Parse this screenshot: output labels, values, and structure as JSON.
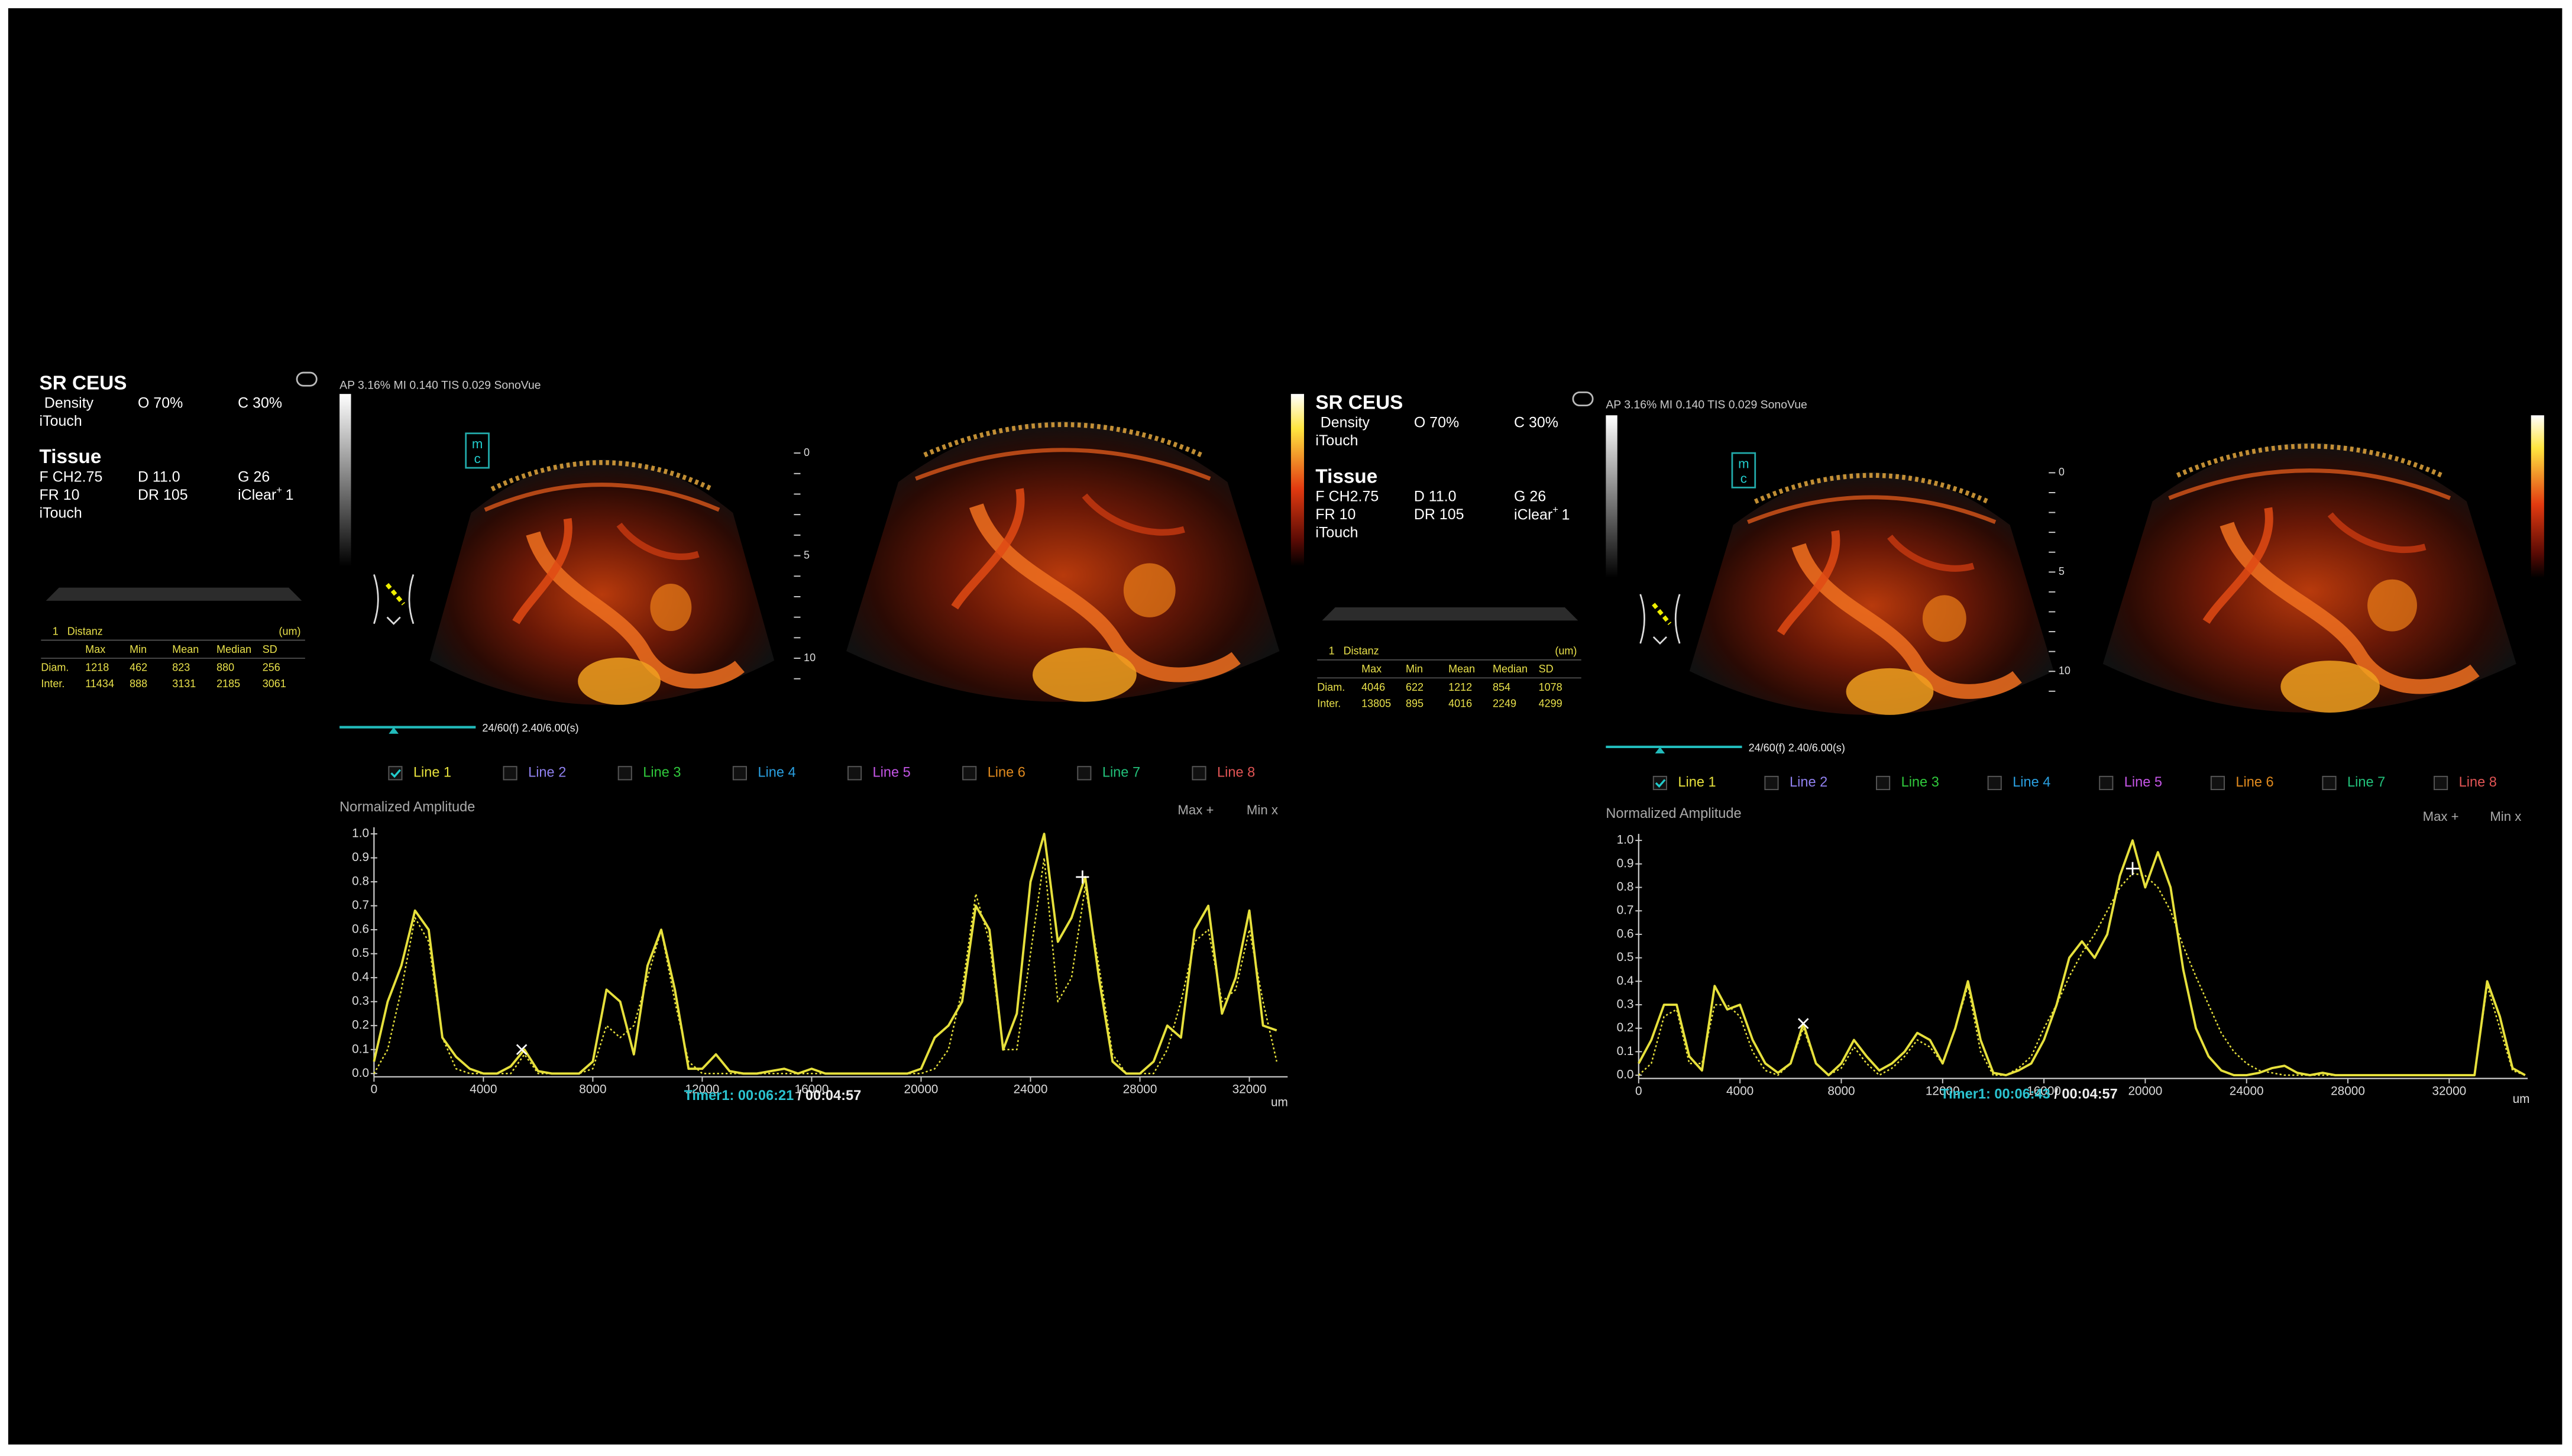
{
  "panels": [
    {
      "mode": "SR CEUS",
      "density": "Density",
      "overall": "O 70%",
      "contrast": "C 30%",
      "itouch": "iTouch",
      "tissue": "Tissue",
      "freq": "F CH2.75",
      "depth": "D 11.0",
      "gain": "G 26",
      "frame_rate": "FR 10",
      "dynamic_range": "DR 105",
      "iclear": "iClear",
      "iclear_sup": "+",
      "iclear_level": "1",
      "itouch2": "iTouch",
      "measure": {
        "index": "1",
        "name": "Distanz",
        "unit": "(um)",
        "columns": [
          "Max",
          "Min",
          "Mean",
          "Median",
          "SD"
        ],
        "rows": [
          {
            "label": "Diam.",
            "values": [
              1218,
              462,
              823,
              880,
              256
            ]
          },
          {
            "label": "Inter.",
            "values": [
              11434,
              888,
              3131,
              2185,
              3061
            ]
          }
        ]
      },
      "status": "AP 3.16%  MI 0.140  TIS 0.029  SonoVue",
      "logo": [
        "m",
        "c"
      ],
      "depth_labels": [
        "0",
        "5",
        "10"
      ],
      "frame": "24/60(f)  2.40/6.00(s)",
      "timer": "Timer1: 00:06:21",
      "timer_total": " / 00:04:57"
    },
    {
      "mode": "SR CEUS",
      "density": "Density",
      "overall": "O 70%",
      "contrast": "C 30%",
      "itouch": "iTouch",
      "tissue": "Tissue",
      "freq": "F CH2.75",
      "depth": "D 11.0",
      "gain": "G 26",
      "frame_rate": "FR 10",
      "dynamic_range": "DR 105",
      "iclear": "iClear",
      "iclear_sup": "+",
      "iclear_level": "1",
      "itouch2": "iTouch",
      "measure": {
        "index": "1",
        "name": "Distanz",
        "unit": "(um)",
        "columns": [
          "Max",
          "Min",
          "Mean",
          "Median",
          "SD"
        ],
        "rows": [
          {
            "label": "Diam.",
            "values": [
              4046,
              622,
              1212,
              854,
              1078
            ]
          },
          {
            "label": "Inter.",
            "values": [
              13805,
              895,
              4016,
              2249,
              4299
            ]
          }
        ]
      },
      "status": "AP 3.16%  MI 0.140  TIS 0.029  SonoVue",
      "logo": [
        "m",
        "c"
      ],
      "depth_labels": [
        "0",
        "5",
        "10"
      ],
      "frame": "24/60(f)  2.40/6.00(s)",
      "timer": "Timer1: 00:06:43",
      "timer_total": " / 00:04:57"
    }
  ],
  "chart_data": [
    {
      "type": "line",
      "title": "Normalized Amplitude",
      "x_unit": "um",
      "lines": [
        {
          "label": "Line 1",
          "color": "#e6e03c",
          "checked": true
        },
        {
          "label": "Line 2",
          "color": "#8f80ee",
          "checked": false
        },
        {
          "label": "Line 3",
          "color": "#30c83c",
          "checked": false
        },
        {
          "label": "Line 4",
          "color": "#2a9fe0",
          "checked": false
        },
        {
          "label": "Line 5",
          "color": "#c455e6",
          "checked": false
        },
        {
          "label": "Line 6",
          "color": "#e08a1e",
          "checked": false
        },
        {
          "label": "Line 7",
          "color": "#22c07a",
          "checked": false
        },
        {
          "label": "Line 8",
          "color": "#e05454",
          "checked": false
        }
      ],
      "max_label": "Max +",
      "min_label": "Min x",
      "xlim": [
        0,
        33400
      ],
      "xticks": [
        0,
        4000,
        8000,
        12000,
        16000,
        20000,
        24000,
        28000,
        32000
      ],
      "ylim": [
        0,
        1
      ],
      "yticks": [
        {
          "value": 0,
          "label": "0.0"
        },
        0.1,
        0.2,
        0.3,
        0.4,
        0.5,
        0.6,
        0.7,
        0.8,
        0.9,
        {
          "value": 1,
          "label": "1.0"
        }
      ],
      "x": [
        0,
        500,
        1000,
        1500,
        2000,
        2500,
        3000,
        3500,
        4000,
        4500,
        5000,
        5500,
        6000,
        6500,
        7000,
        7500,
        8000,
        8500,
        9000,
        9500,
        10000,
        10500,
        11000,
        11500,
        12000,
        12500,
        13000,
        13500,
        14000,
        14500,
        15000,
        15500,
        16000,
        16500,
        17000,
        17500,
        18000,
        18500,
        19000,
        19500,
        20000,
        20500,
        21000,
        21500,
        22000,
        22500,
        23000,
        23500,
        24000,
        24500,
        25000,
        25500,
        26000,
        26500,
        27000,
        27500,
        28000,
        28500,
        29000,
        29500,
        30000,
        30500,
        31000,
        31500,
        32000,
        32500,
        33000
      ],
      "series": [
        {
          "color": "#e6e03c",
          "dash": "solid",
          "values": [
            0.05,
            0.3,
            0.45,
            0.68,
            0.6,
            0.15,
            0.07,
            0.02,
            0,
            0,
            0.03,
            0.1,
            0.01,
            0,
            0,
            0,
            0.05,
            0.35,
            0.3,
            0.08,
            0.45,
            0.6,
            0.35,
            0.02,
            0.02,
            0.08,
            0.01,
            0,
            0,
            0.01,
            0.02,
            0,
            0.02,
            0,
            0,
            0,
            0,
            0,
            0,
            0,
            0.02,
            0.15,
            0.2,
            0.3,
            0.7,
            0.6,
            0.1,
            0.25,
            0.8,
            1.0,
            0.55,
            0.65,
            0.82,
            0.4,
            0.05,
            0,
            0,
            0.05,
            0.2,
            0.15,
            0.6,
            0.7,
            0.25,
            0.4,
            0.68,
            0.2,
            0.18
          ]
        },
        {
          "color": "#e6e03c",
          "dash": "dotted",
          "values": [
            0,
            0.1,
            0.35,
            0.65,
            0.55,
            0.15,
            0.02,
            0,
            0,
            0,
            0,
            0.08,
            0,
            0,
            0,
            0,
            0.02,
            0.2,
            0.15,
            0.2,
            0.4,
            0.6,
            0.3,
            0.05,
            0,
            0,
            0,
            0,
            0,
            0,
            0,
            0,
            0,
            0,
            0,
            0,
            0,
            0,
            0,
            0,
            0,
            0.02,
            0.1,
            0.35,
            0.75,
            0.55,
            0.1,
            0.1,
            0.5,
            0.9,
            0.3,
            0.4,
            0.78,
            0.45,
            0.08,
            0,
            0,
            0,
            0.1,
            0.3,
            0.55,
            0.6,
            0.3,
            0.35,
            0.6,
            0.3,
            0.05
          ]
        }
      ],
      "max_point": {
        "x": 25900,
        "y": 0.82
      },
      "min_point": {
        "x": 5400,
        "y": 0.1
      }
    },
    {
      "type": "line",
      "title": "Normalized Amplitude",
      "x_unit": "um",
      "lines": [
        {
          "label": "Line 1",
          "color": "#e6e03c",
          "checked": true
        },
        {
          "label": "Line 2",
          "color": "#8f80ee",
          "checked": false
        },
        {
          "label": "Line 3",
          "color": "#30c83c",
          "checked": false
        },
        {
          "label": "Line 4",
          "color": "#2a9fe0",
          "checked": false
        },
        {
          "label": "Line 5",
          "color": "#c455e6",
          "checked": false
        },
        {
          "label": "Line 6",
          "color": "#e08a1e",
          "checked": false
        },
        {
          "label": "Line 7",
          "color": "#22c07a",
          "checked": false
        },
        {
          "label": "Line 8",
          "color": "#e05454",
          "checked": false
        }
      ],
      "max_label": "Max +",
      "min_label": "Min x",
      "xlim": [
        0,
        35100
      ],
      "xticks": [
        0,
        4000,
        8000,
        12000,
        16000,
        20000,
        24000,
        28000,
        32000
      ],
      "ylim": [
        0,
        1
      ],
      "yticks": [
        {
          "value": 0,
          "label": "0.0"
        },
        0.1,
        0.2,
        0.3,
        0.4,
        0.5,
        0.6,
        0.7,
        0.8,
        0.9,
        {
          "value": 1,
          "label": "1.0"
        }
      ],
      "x": [
        0,
        500,
        1000,
        1500,
        2000,
        2500,
        3000,
        3500,
        4000,
        4500,
        5000,
        5500,
        6000,
        6500,
        7000,
        7500,
        8000,
        8500,
        9000,
        9500,
        10000,
        10500,
        11000,
        11500,
        12000,
        12500,
        13000,
        13500,
        14000,
        14500,
        15000,
        15500,
        16000,
        16500,
        17000,
        17500,
        18000,
        18500,
        19000,
        19500,
        20000,
        20500,
        21000,
        21500,
        22000,
        22500,
        23000,
        23500,
        24000,
        24500,
        25000,
        25500,
        26000,
        26500,
        27000,
        27500,
        28000,
        28500,
        29000,
        29500,
        30000,
        30500,
        31000,
        31500,
        32000,
        32500,
        33000,
        33500,
        34000,
        34500,
        35000
      ],
      "series": [
        {
          "color": "#e6e03c",
          "dash": "solid",
          "values": [
            0.05,
            0.15,
            0.3,
            0.3,
            0.08,
            0.02,
            0.38,
            0.28,
            0.3,
            0.15,
            0.05,
            0.01,
            0.05,
            0.22,
            0.05,
            0,
            0.05,
            0.15,
            0.08,
            0.02,
            0.05,
            0.1,
            0.18,
            0.15,
            0.05,
            0.2,
            0.4,
            0.15,
            0.01,
            0,
            0.02,
            0.05,
            0.15,
            0.3,
            0.5,
            0.57,
            0.5,
            0.6,
            0.85,
            1.0,
            0.8,
            0.95,
            0.8,
            0.45,
            0.2,
            0.08,
            0.02,
            0,
            0,
            0.01,
            0.03,
            0.04,
            0.01,
            0,
            0.01,
            0,
            0,
            0,
            0,
            0,
            0,
            0,
            0,
            0,
            0,
            0,
            0,
            0.4,
            0.25,
            0.03,
            0
          ]
        },
        {
          "color": "#e6e03c",
          "dash": "dotted",
          "values": [
            0,
            0.05,
            0.25,
            0.28,
            0.05,
            0.05,
            0.3,
            0.3,
            0.25,
            0.1,
            0.02,
            0,
            0.05,
            0.2,
            0.05,
            0,
            0.03,
            0.12,
            0.05,
            0,
            0.03,
            0.08,
            0.15,
            0.12,
            0.05,
            0.2,
            0.38,
            0.1,
            0,
            0,
            0.03,
            0.08,
            0.2,
            0.3,
            0.42,
            0.52,
            0.6,
            0.7,
            0.8,
            0.86,
            0.85,
            0.8,
            0.7,
            0.55,
            0.42,
            0.3,
            0.18,
            0.1,
            0.05,
            0.02,
            0.01,
            0,
            0,
            0,
            0,
            0,
            0,
            0,
            0,
            0,
            0,
            0,
            0,
            0,
            0,
            0,
            0,
            0.38,
            0.2,
            0.02,
            0
          ]
        }
      ],
      "max_point": {
        "x": 19500,
        "y": 0.88
      },
      "min_point": {
        "x": 6500,
        "y": 0.22
      }
    }
  ]
}
